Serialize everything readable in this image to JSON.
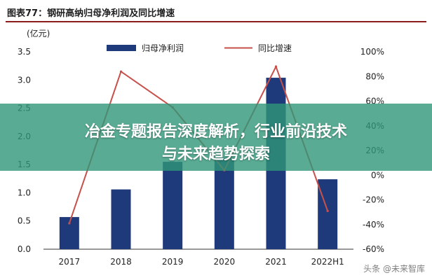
{
  "figure": {
    "title": "图表77：钢研高纳归母净利润及同比增速",
    "left_unit": "(亿元)"
  },
  "overlay": {
    "line1": "冶金专题报告深度解析，行业前沿技术",
    "line2": "与未来趋势探索"
  },
  "watermark": "头条 @未来智库",
  "colors": {
    "bar": "#1f3a7a",
    "line": "#c8504a",
    "overlay": "#30967a"
  },
  "chart_data": {
    "type": "bar",
    "categories": [
      "2017",
      "2018",
      "2019",
      "2020",
      "2021",
      "2022H1"
    ],
    "series": [
      {
        "name": "归母净利润",
        "type": "bar",
        "axis": "left",
        "values": [
          0.57,
          1.06,
          1.55,
          1.62,
          3.04,
          1.24
        ]
      },
      {
        "name": "同比增速",
        "type": "line",
        "axis": "right",
        "values": [
          -0.39,
          0.84,
          0.55,
          0.04,
          0.88,
          -0.29
        ]
      }
    ],
    "left_axis": {
      "ylim": [
        0,
        3.5
      ],
      "ticks": [
        "0.0",
        "0.5",
        "1.0",
        "1.5",
        "2.0",
        "2.5",
        "3.0",
        "3.5"
      ]
    },
    "right_axis": {
      "ylim": [
        -0.6,
        1.0
      ],
      "ticks": [
        "-60%",
        "-40%",
        "-20%",
        "0%",
        "20%",
        "40%",
        "60%",
        "80%",
        "100%"
      ]
    },
    "legend_position": "top-center",
    "grid": false
  }
}
